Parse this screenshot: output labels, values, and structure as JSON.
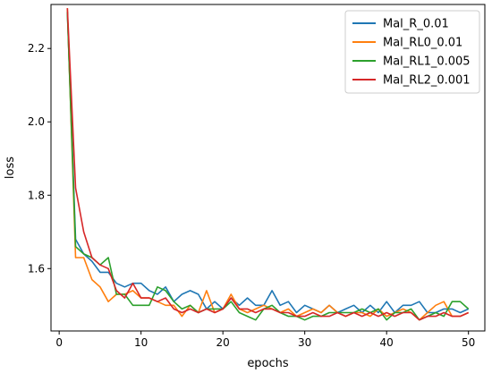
{
  "chart_data": {
    "type": "line",
    "title": "",
    "xlabel": "epochs",
    "ylabel": "loss",
    "xlim": [
      -1,
      52
    ],
    "ylim": [
      1.43,
      2.32
    ],
    "xticks": [
      0,
      10,
      20,
      30,
      40,
      50
    ],
    "yticks": [
      1.6,
      1.8,
      2.0,
      2.2
    ],
    "grid": false,
    "legend_position": "top-right",
    "x": [
      1,
      2,
      3,
      4,
      5,
      6,
      7,
      8,
      9,
      10,
      11,
      12,
      13,
      14,
      15,
      16,
      17,
      18,
      19,
      20,
      21,
      22,
      23,
      24,
      25,
      26,
      27,
      28,
      29,
      30,
      31,
      32,
      33,
      34,
      35,
      36,
      37,
      38,
      39,
      40,
      41,
      42,
      43,
      44,
      45,
      46,
      47,
      48,
      49,
      50
    ],
    "series": [
      {
        "name": "Mal_R_0.01",
        "color": "#1f77b4",
        "values": [
          2.3,
          1.68,
          1.64,
          1.62,
          1.59,
          1.59,
          1.56,
          1.55,
          1.56,
          1.56,
          1.54,
          1.53,
          1.55,
          1.51,
          1.53,
          1.54,
          1.53,
          1.49,
          1.51,
          1.49,
          1.52,
          1.5,
          1.52,
          1.5,
          1.5,
          1.54,
          1.5,
          1.51,
          1.48,
          1.5,
          1.49,
          1.48,
          1.5,
          1.48,
          1.49,
          1.5,
          1.48,
          1.5,
          1.48,
          1.51,
          1.48,
          1.5,
          1.5,
          1.51,
          1.48,
          1.48,
          1.49,
          1.49,
          1.48,
          1.49
        ]
      },
      {
        "name": "Mal_RL0_0.01",
        "color": "#ff7f0e",
        "values": [
          2.31,
          1.63,
          1.63,
          1.57,
          1.55,
          1.51,
          1.53,
          1.53,
          1.54,
          1.52,
          1.52,
          1.51,
          1.5,
          1.5,
          1.47,
          1.5,
          1.48,
          1.54,
          1.48,
          1.49,
          1.53,
          1.49,
          1.48,
          1.49,
          1.5,
          1.49,
          1.48,
          1.49,
          1.47,
          1.48,
          1.49,
          1.48,
          1.5,
          1.48,
          1.47,
          1.48,
          1.48,
          1.47,
          1.49,
          1.47,
          1.48,
          1.49,
          1.48,
          1.46,
          1.48,
          1.5,
          1.51,
          1.47,
          1.47,
          1.48
        ]
      },
      {
        "name": "Mal_RL1_0.005",
        "color": "#2ca02c",
        "values": [
          2.3,
          1.66,
          1.64,
          1.63,
          1.61,
          1.63,
          1.53,
          1.53,
          1.5,
          1.5,
          1.5,
          1.55,
          1.54,
          1.51,
          1.49,
          1.5,
          1.48,
          1.49,
          1.49,
          1.49,
          1.51,
          1.48,
          1.47,
          1.46,
          1.49,
          1.5,
          1.48,
          1.47,
          1.47,
          1.46,
          1.47,
          1.47,
          1.48,
          1.48,
          1.48,
          1.48,
          1.49,
          1.48,
          1.49,
          1.46,
          1.48,
          1.48,
          1.49,
          1.46,
          1.47,
          1.48,
          1.47,
          1.51,
          1.51,
          1.49
        ]
      },
      {
        "name": "Mal_RL2_0.001",
        "color": "#d62728",
        "values": [
          2.31,
          1.82,
          1.7,
          1.63,
          1.61,
          1.6,
          1.54,
          1.52,
          1.56,
          1.52,
          1.52,
          1.51,
          1.52,
          1.49,
          1.48,
          1.49,
          1.48,
          1.49,
          1.48,
          1.49,
          1.52,
          1.49,
          1.49,
          1.48,
          1.49,
          1.49,
          1.48,
          1.48,
          1.47,
          1.47,
          1.48,
          1.47,
          1.47,
          1.48,
          1.47,
          1.48,
          1.47,
          1.48,
          1.47,
          1.48,
          1.47,
          1.48,
          1.48,
          1.46,
          1.47,
          1.47,
          1.48,
          1.47,
          1.47,
          1.48
        ]
      }
    ]
  }
}
